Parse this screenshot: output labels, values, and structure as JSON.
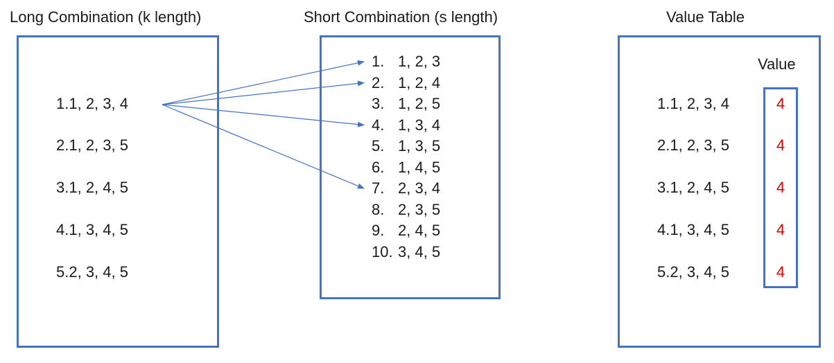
{
  "long": {
    "title": "Long Combination (k length)",
    "items": [
      {
        "num": "1.",
        "values": "1, 2, 3, 4"
      },
      {
        "num": "2.",
        "values": "1, 2, 3, 5"
      },
      {
        "num": "3.",
        "values": "1, 2, 4, 5"
      },
      {
        "num": "4.",
        "values": "1, 3, 4, 5"
      },
      {
        "num": "5.",
        "values": "2, 3, 4, 5"
      }
    ]
  },
  "short": {
    "title": "Short Combination (s length)",
    "items": [
      {
        "num": "1.",
        "values": "1, 2, 3"
      },
      {
        "num": "2.",
        "values": "1, 2, 4"
      },
      {
        "num": "3.",
        "values": "1, 2, 5"
      },
      {
        "num": "4.",
        "values": "1, 3, 4"
      },
      {
        "num": "5.",
        "values": "1, 3, 5"
      },
      {
        "num": "6.",
        "values": "1, 4, 5"
      },
      {
        "num": "7.",
        "values": "2, 3, 4"
      },
      {
        "num": "8.",
        "values": "2, 3, 5"
      },
      {
        "num": "9.",
        "values": "2, 4, 5"
      },
      {
        "num": "10.",
        "values": "3, 4, 5"
      }
    ]
  },
  "value_table": {
    "title": "Value Table",
    "column_header": "Value",
    "items": [
      {
        "num": "1.",
        "values": "1, 2, 3, 4",
        "value": "4"
      },
      {
        "num": "2.",
        "values": "1, 2, 3, 5",
        "value": "4"
      },
      {
        "num": "3.",
        "values": "1, 2, 4, 5",
        "value": "4"
      },
      {
        "num": "4.",
        "values": "1, 3, 4, 5",
        "value": "4"
      },
      {
        "num": "5.",
        "values": "2, 3, 4, 5",
        "value": "4"
      }
    ]
  },
  "arrows": {
    "from_long_item": 1,
    "to_short_items": [
      1,
      2,
      4,
      7
    ]
  },
  "colors": {
    "box_border": "#4472C4",
    "arrow": "#4472C4",
    "value_text": "#e00000",
    "text": "#1a1a1a"
  }
}
